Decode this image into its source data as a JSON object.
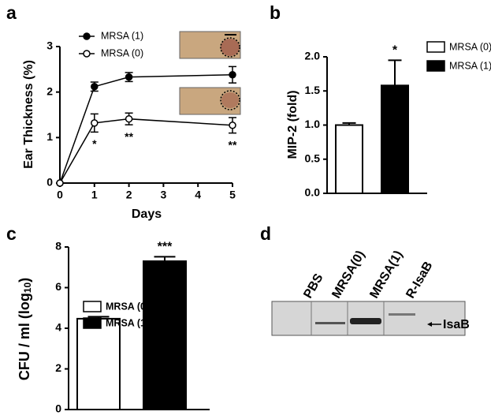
{
  "chart_data": [
    {
      "panel": "a",
      "type": "line",
      "ylabel": "Ear Thickness (%)",
      "xlabel": "Days",
      "x": [
        0,
        1,
        2,
        5
      ],
      "xlim": [
        0,
        5
      ],
      "xticks": [
        0,
        1,
        2,
        3,
        4,
        5
      ],
      "ylim": [
        0,
        3
      ],
      "yticks": [
        0,
        1,
        2,
        3
      ],
      "legend": "upper left",
      "series": [
        {
          "name": "MRSA (1)",
          "color": "#000000",
          "marker_fill": "#000000",
          "values": [
            0,
            2.12,
            2.33,
            2.38
          ],
          "errors": [
            null,
            0.1,
            0.1,
            0.18
          ]
        },
        {
          "name": "MRSA (0)",
          "color": "#000000",
          "marker_fill": "#ffffff",
          "values": [
            0,
            1.32,
            1.41,
            1.27
          ],
          "errors": [
            null,
            0.2,
            0.13,
            0.17
          ],
          "annotations": [
            null,
            "*",
            "**",
            "**"
          ]
        }
      ]
    },
    {
      "panel": "b",
      "type": "bar",
      "ylabel": "MIP-2 (fold)",
      "ylim": [
        0,
        2
      ],
      "yticks": [
        {
          "value": 0,
          "label": "0.0"
        },
        0.5,
        {
          "value": 1,
          "label": "1.0"
        },
        1.5,
        {
          "value": 2,
          "label": "2.0"
        }
      ],
      "legend": "upper right",
      "series": [
        {
          "name": "MRSA (0)",
          "color": "#ffffff",
          "values": [
            1.0
          ],
          "errors": [
            0.03
          ]
        },
        {
          "name": "MRSA (1)",
          "color": "#000000",
          "values": [
            1.58
          ],
          "errors": [
            0.37
          ],
          "annotation": "*"
        }
      ]
    },
    {
      "panel": "c",
      "type": "bar",
      "ylabel": {
        "text": "CFU / ml (log",
        "subscript": "10",
        "end": ")"
      },
      "ylim": [
        0,
        8
      ],
      "yticks": [
        0,
        2,
        4,
        6,
        8
      ],
      "legend": "center left",
      "series": [
        {
          "name": "MRSA (0)",
          "color": "#ffffff",
          "values": [
            4.47
          ],
          "errors": [
            0.1
          ]
        },
        {
          "name": "MRSA (1)",
          "color": "#000000",
          "values": [
            7.3
          ],
          "errors": [
            0.22
          ],
          "annotation": "***"
        }
      ]
    }
  ],
  "blot": {
    "panel": "d",
    "lanes": [
      "PBS",
      "MRSA(0)",
      "MRSA(1)",
      "R-IsaB"
    ],
    "band_label": "IsaB"
  }
}
